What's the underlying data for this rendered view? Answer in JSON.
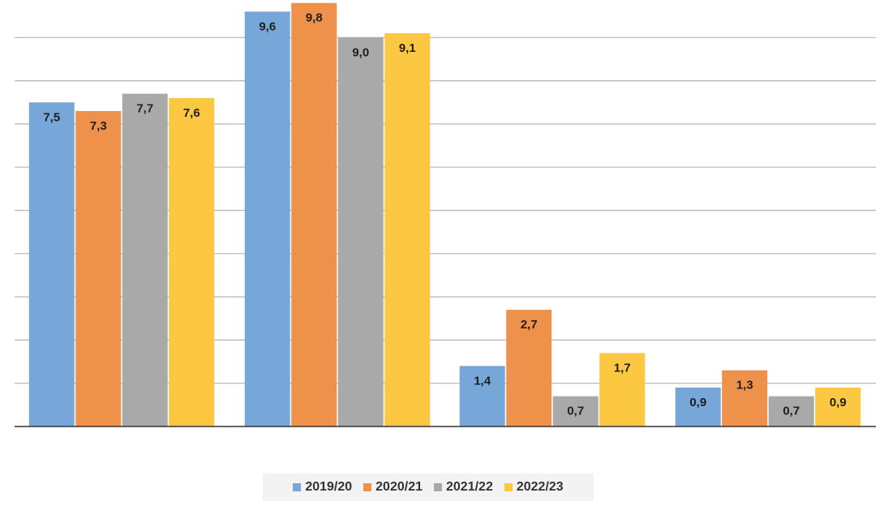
{
  "chart_data": {
    "type": "bar",
    "title": "",
    "xlabel": "",
    "ylabel": "",
    "categories": [
      "",
      "",
      "",
      ""
    ],
    "ylim": [
      0,
      10
    ],
    "grid": true,
    "legend_position": "bottom",
    "series": [
      {
        "name": "2019/20",
        "color": "#77a7d9",
        "values": [
          7.5,
          9.6,
          1.4,
          0.9
        ],
        "labels": [
          "7,5",
          "9,6",
          "1,4",
          "0,9"
        ]
      },
      {
        "name": "2020/21",
        "color": "#ed914b",
        "values": [
          7.3,
          9.8,
          2.7,
          1.3
        ],
        "labels": [
          "7,3",
          "9,8",
          "2,7",
          "1,3"
        ]
      },
      {
        "name": "2021/22",
        "color": "#a9a9a9",
        "values": [
          7.7,
          9.0,
          0.7,
          0.7
        ],
        "labels": [
          "7,7",
          "9,0",
          "0,7",
          "0,7"
        ]
      },
      {
        "name": "2022/23",
        "color": "#fcc842",
        "values": [
          7.6,
          9.1,
          1.7,
          0.9
        ],
        "labels": [
          "7,6",
          "9,1",
          "1,7",
          "0,9"
        ]
      }
    ]
  },
  "legend": {
    "items": [
      {
        "label": "2019/20",
        "color": "#77a7d9"
      },
      {
        "label": "2020/21",
        "color": "#ed914b"
      },
      {
        "label": "2021/22",
        "color": "#a9a9a9"
      },
      {
        "label": "2022/23",
        "color": "#fcc842"
      }
    ]
  }
}
